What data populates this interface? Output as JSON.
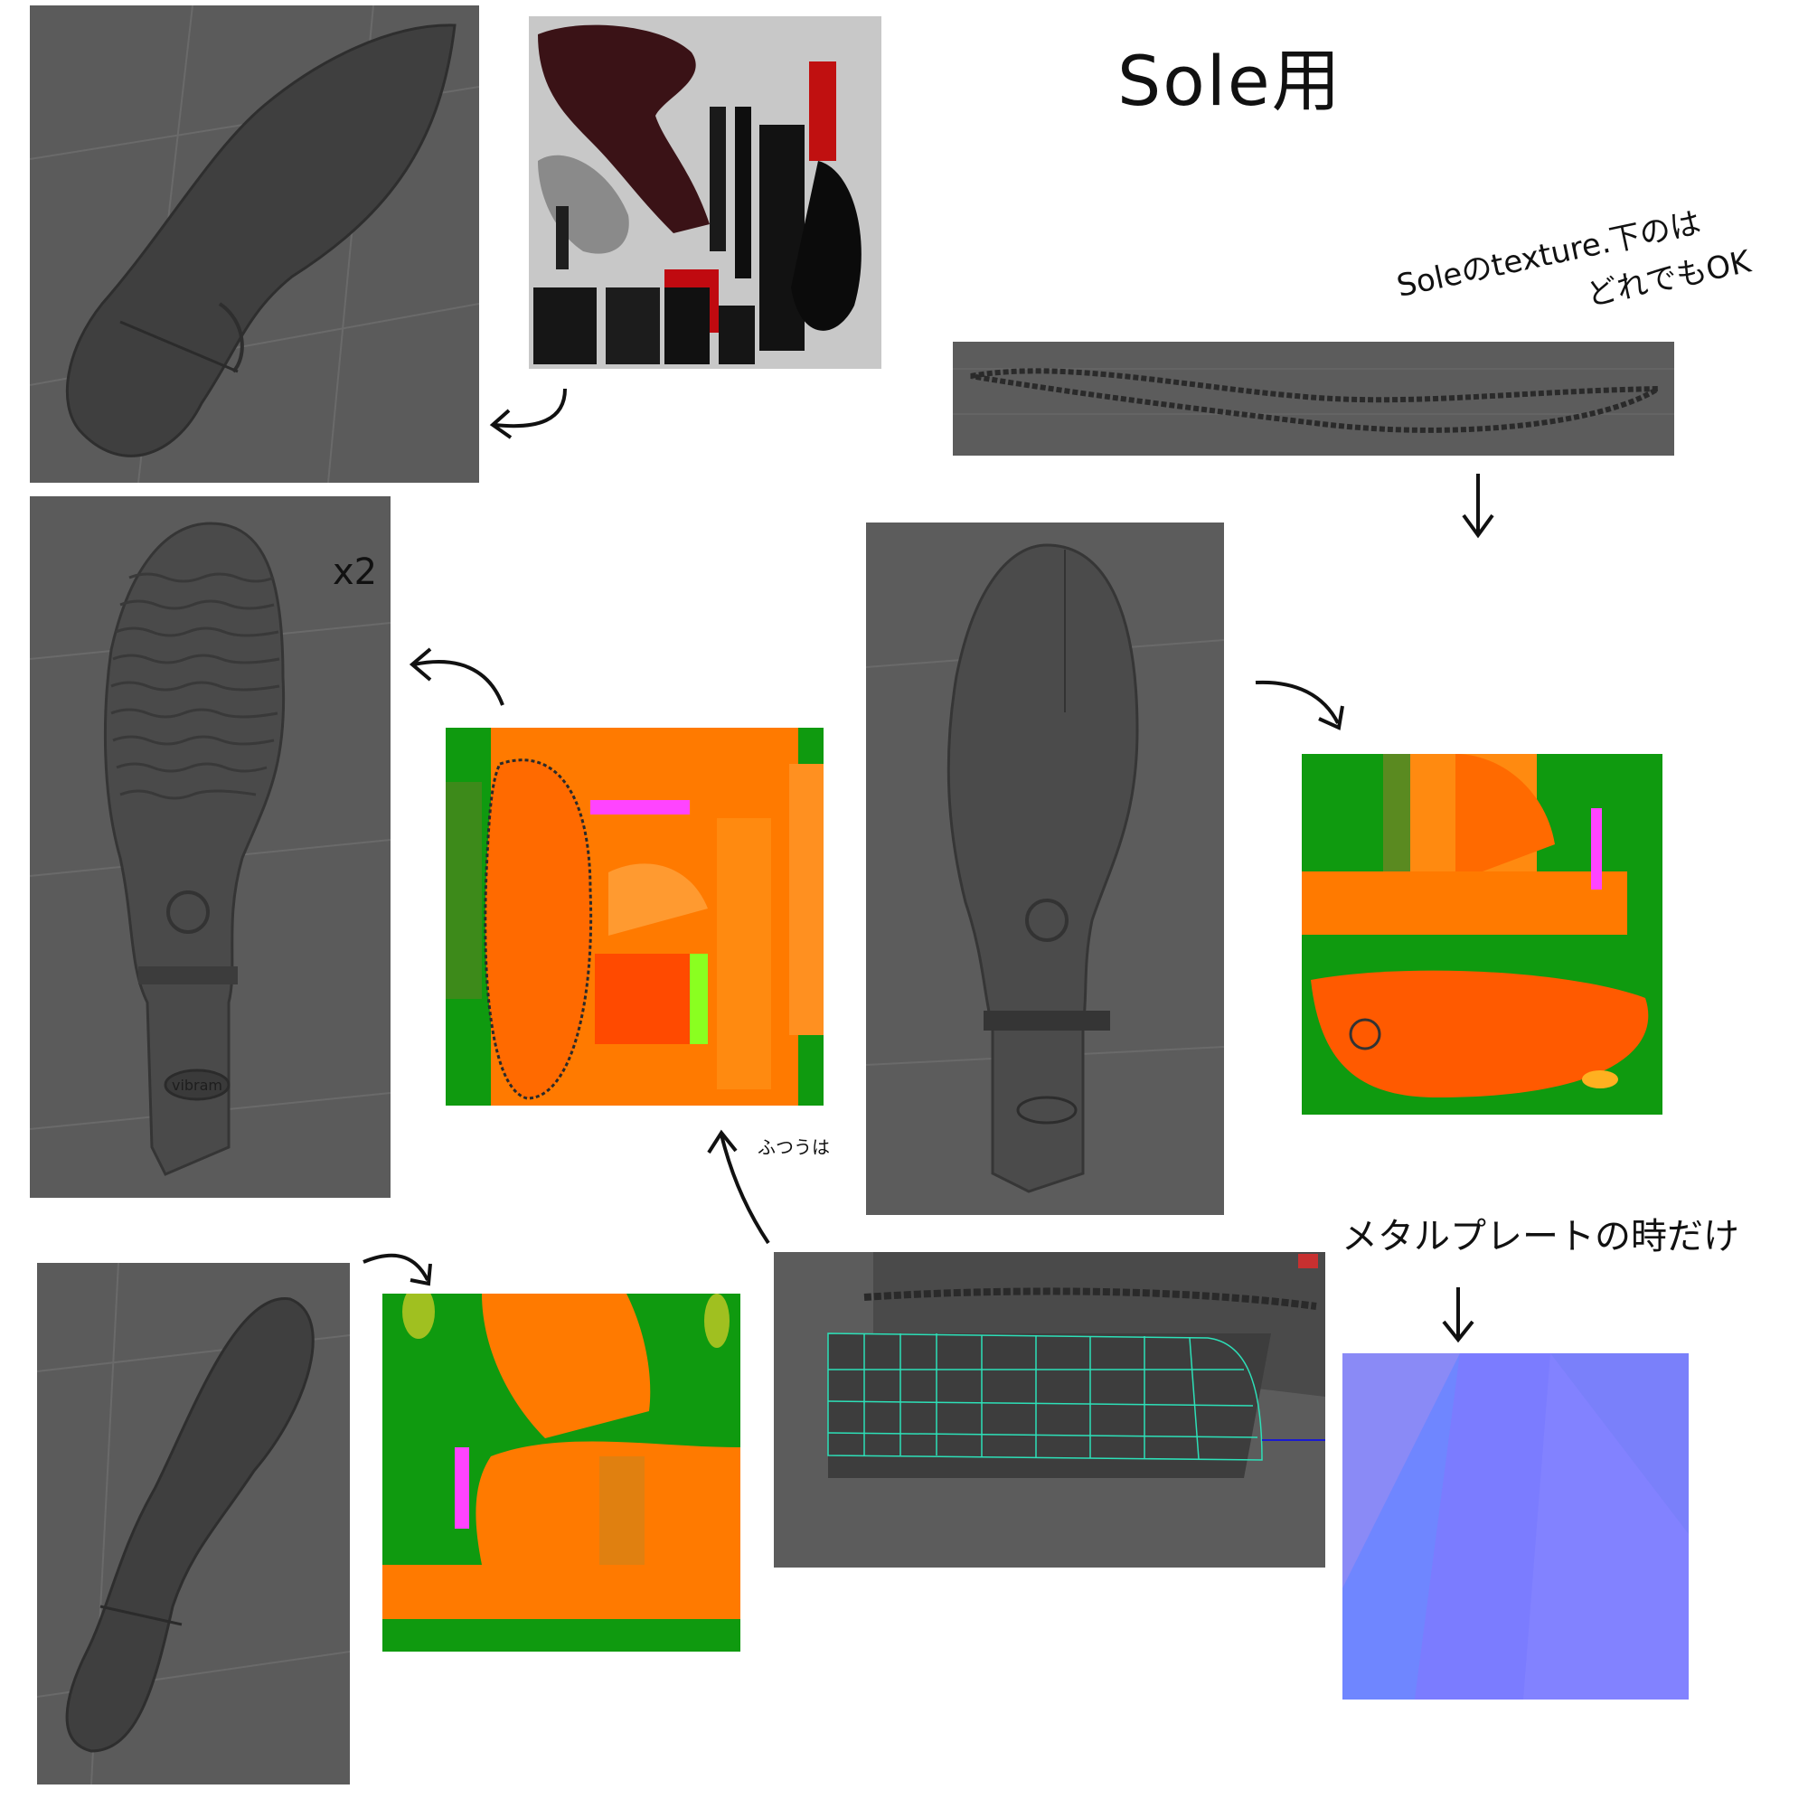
{
  "title": "Sole用",
  "notes": {
    "sole_texture": "Soleのtexture.下のは",
    "any_ok": "どれでもOK",
    "times_two": "x2",
    "usually": "ふつうは",
    "metal_plate_only": "メタルプレートの時だけ"
  },
  "logos": {
    "vibram": "vibram"
  },
  "colors": {
    "viewport_bg": "#5a5a5a",
    "shoe_gray": "#4a4a4a",
    "map_orange": "#ff7a00",
    "map_green": "#0f9a0f",
    "map_magenta": "#ff44ff",
    "normal_blue": "#7f7fff",
    "wire_cyan": "#2de0b8"
  }
}
